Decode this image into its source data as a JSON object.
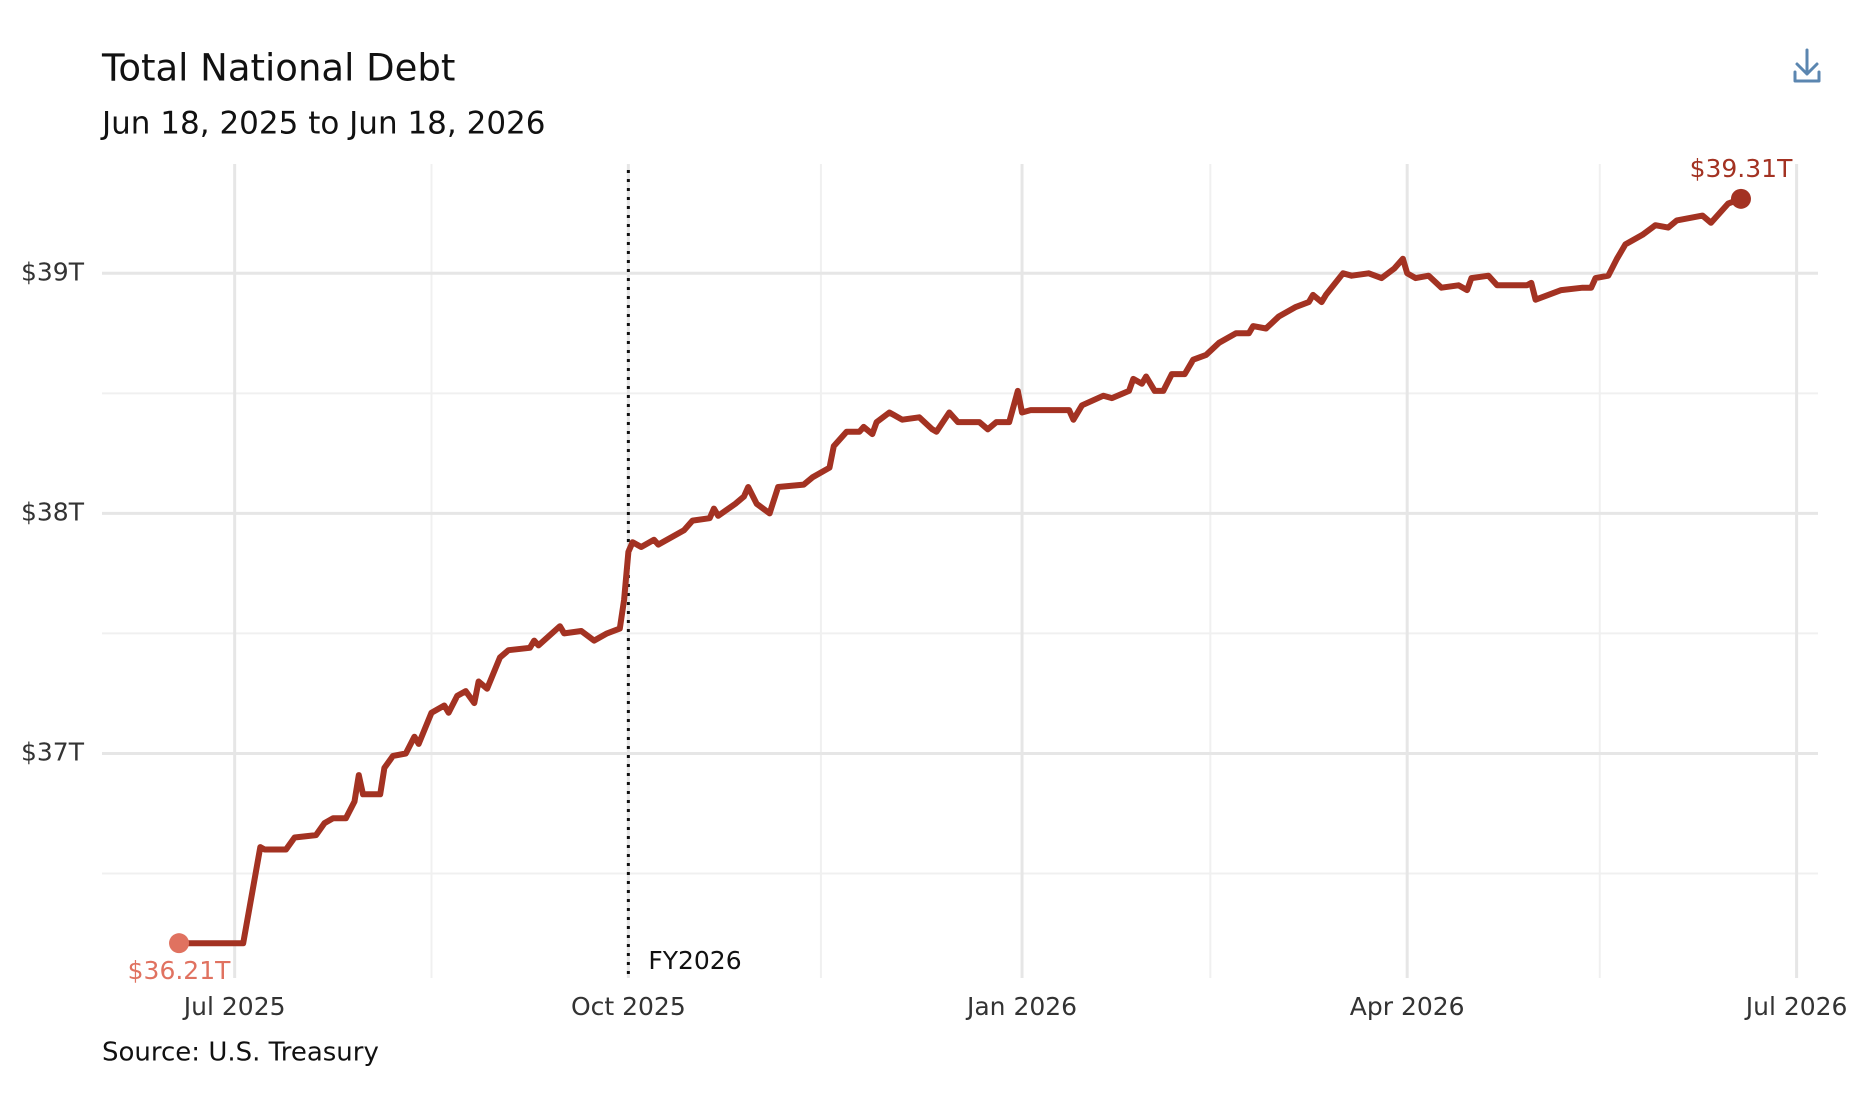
{
  "chart_data": {
    "type": "line",
    "title": "Total National Debt",
    "subtitle": "Jun 18, 2025 to Jun 18, 2026",
    "source": "Source: U.S. Treasury",
    "xlim": [
      "2025-05-31",
      "2026-07-06"
    ],
    "xticks": [
      {
        "value": "2025-07-01",
        "label": "Jul 2025"
      },
      {
        "value": "2025-10-01",
        "label": "Oct 2025"
      },
      {
        "value": "2026-01-01",
        "label": "Jan 2026"
      },
      {
        "value": "2026-04-01",
        "label": "Apr 2026"
      },
      {
        "value": "2026-07-01",
        "label": "Jul 2026"
      }
    ],
    "xminorticks": [
      "2025-08-16",
      "2025-11-15",
      "2026-02-14",
      "2026-05-16"
    ],
    "ylim": [
      36.065,
      39.455
    ],
    "yticks": [
      {
        "value": 37,
        "label": "$37T"
      },
      {
        "value": 38,
        "label": "$38T"
      },
      {
        "value": 39,
        "label": "$39T"
      }
    ],
    "yminorticks": [
      36.5,
      37.5,
      38.5
    ],
    "grid": true,
    "annotation": {
      "x": "2025-10-01",
      "label": "FY2026"
    },
    "series": [
      {
        "name": "Total National Debt",
        "color": "#a33222",
        "x": [
          "2025-06-18",
          "2025-07-03",
          "2025-07-07",
          "2025-07-08",
          "2025-07-13",
          "2025-07-15",
          "2025-07-20",
          "2025-07-22",
          "2025-07-24",
          "2025-07-27",
          "2025-07-29",
          "2025-07-30",
          "2025-07-31",
          "2025-08-04",
          "2025-08-05",
          "2025-08-07",
          "2025-08-10",
          "2025-08-12",
          "2025-08-13",
          "2025-08-16",
          "2025-08-19",
          "2025-08-20",
          "2025-08-22",
          "2025-08-24",
          "2025-08-26",
          "2025-08-27",
          "2025-08-29",
          "2025-09-01",
          "2025-09-03",
          "2025-09-08",
          "2025-09-09",
          "2025-09-10",
          "2025-09-15",
          "2025-09-16",
          "2025-09-20",
          "2025-09-23",
          "2025-09-26",
          "2025-09-29",
          "2025-09-30",
          "2025-10-01",
          "2025-10-02",
          "2025-10-04",
          "2025-10-07",
          "2025-10-08",
          "2025-10-14",
          "2025-10-16",
          "2025-10-20",
          "2025-10-21",
          "2025-10-22",
          "2025-10-26",
          "2025-10-28",
          "2025-10-29",
          "2025-10-31",
          "2025-11-03",
          "2025-11-05",
          "2025-11-11",
          "2025-11-13",
          "2025-11-17",
          "2025-11-18",
          "2025-11-21",
          "2025-11-24",
          "2025-11-25",
          "2025-11-27",
          "2025-11-28",
          "2025-12-01",
          "2025-12-02",
          "2025-12-04",
          "2025-12-08",
          "2025-12-11",
          "2025-12-12",
          "2025-12-15",
          "2025-12-17",
          "2025-12-22",
          "2025-12-24",
          "2025-12-26",
          "2025-12-29",
          "2025-12-31",
          "2026-01-01",
          "2026-01-03",
          "2026-01-12",
          "2026-01-13",
          "2026-01-15",
          "2026-01-20",
          "2026-01-22",
          "2026-01-26",
          "2026-01-27",
          "2026-01-29",
          "2026-01-30",
          "2026-02-01",
          "2026-02-03",
          "2026-02-05",
          "2026-02-08",
          "2026-02-10",
          "2026-02-13",
          "2026-02-16",
          "2026-02-20",
          "2026-02-23",
          "2026-02-24",
          "2026-02-27",
          "2026-03-02",
          "2026-03-06",
          "2026-03-09",
          "2026-03-10",
          "2026-03-12",
          "2026-03-13",
          "2026-03-17",
          "2026-03-19",
          "2026-03-23",
          "2026-03-26",
          "2026-03-29",
          "2026-03-31",
          "2026-04-01",
          "2026-04-03",
          "2026-04-06",
          "2026-04-09",
          "2026-04-13",
          "2026-04-15",
          "2026-04-16",
          "2026-04-20",
          "2026-04-22",
          "2026-04-29",
          "2026-04-30",
          "2026-05-01",
          "2026-05-07",
          "2026-05-12",
          "2026-05-14",
          "2026-05-15",
          "2026-05-18",
          "2026-05-20",
          "2026-05-22",
          "2026-05-26",
          "2026-05-29",
          "2026-06-01",
          "2026-06-03",
          "2026-06-09",
          "2026-06-11",
          "2026-06-15",
          "2026-06-18"
        ],
        "values": [
          36.21,
          36.21,
          36.61,
          36.6,
          36.6,
          36.65,
          36.66,
          36.71,
          36.73,
          36.73,
          36.8,
          36.91,
          36.83,
          36.83,
          36.94,
          36.99,
          37.0,
          37.07,
          37.04,
          37.17,
          37.2,
          37.17,
          37.24,
          37.26,
          37.21,
          37.3,
          37.27,
          37.4,
          37.43,
          37.44,
          37.47,
          37.45,
          37.53,
          37.5,
          37.51,
          37.47,
          37.5,
          37.52,
          37.64,
          37.84,
          37.88,
          37.86,
          37.89,
          37.87,
          37.93,
          37.97,
          37.98,
          38.02,
          37.99,
          38.04,
          38.07,
          38.11,
          38.04,
          38.0,
          38.11,
          38.12,
          38.15,
          38.19,
          38.28,
          38.34,
          38.34,
          38.36,
          38.33,
          38.38,
          38.42,
          38.41,
          38.39,
          38.4,
          38.35,
          38.34,
          38.42,
          38.38,
          38.38,
          38.35,
          38.38,
          38.38,
          38.51,
          38.42,
          38.43,
          38.43,
          38.39,
          38.45,
          38.49,
          38.48,
          38.51,
          38.56,
          38.54,
          38.57,
          38.51,
          38.51,
          38.58,
          38.58,
          38.64,
          38.66,
          38.71,
          38.75,
          38.75,
          38.78,
          38.77,
          38.82,
          38.86,
          38.88,
          38.91,
          38.88,
          38.91,
          39.0,
          38.99,
          39.0,
          38.98,
          39.02,
          39.06,
          39.0,
          38.98,
          38.99,
          38.94,
          38.95,
          38.93,
          38.98,
          38.99,
          38.95,
          38.95,
          38.96,
          38.89,
          38.93,
          38.94,
          38.94,
          38.98,
          38.99,
          39.06,
          39.12,
          39.16,
          39.2,
          39.19,
          39.22,
          39.24,
          39.21,
          39.29,
          39.31
        ]
      }
    ],
    "endpoints": {
      "x": [
        "2025-06-18",
        "2026-06-18"
      ],
      "values": [
        36.21,
        39.31
      ],
      "value_labels": [
        "$36.21T",
        "$39.31T"
      ],
      "colors": [
        "#e07260",
        "#a33222"
      ]
    }
  }
}
